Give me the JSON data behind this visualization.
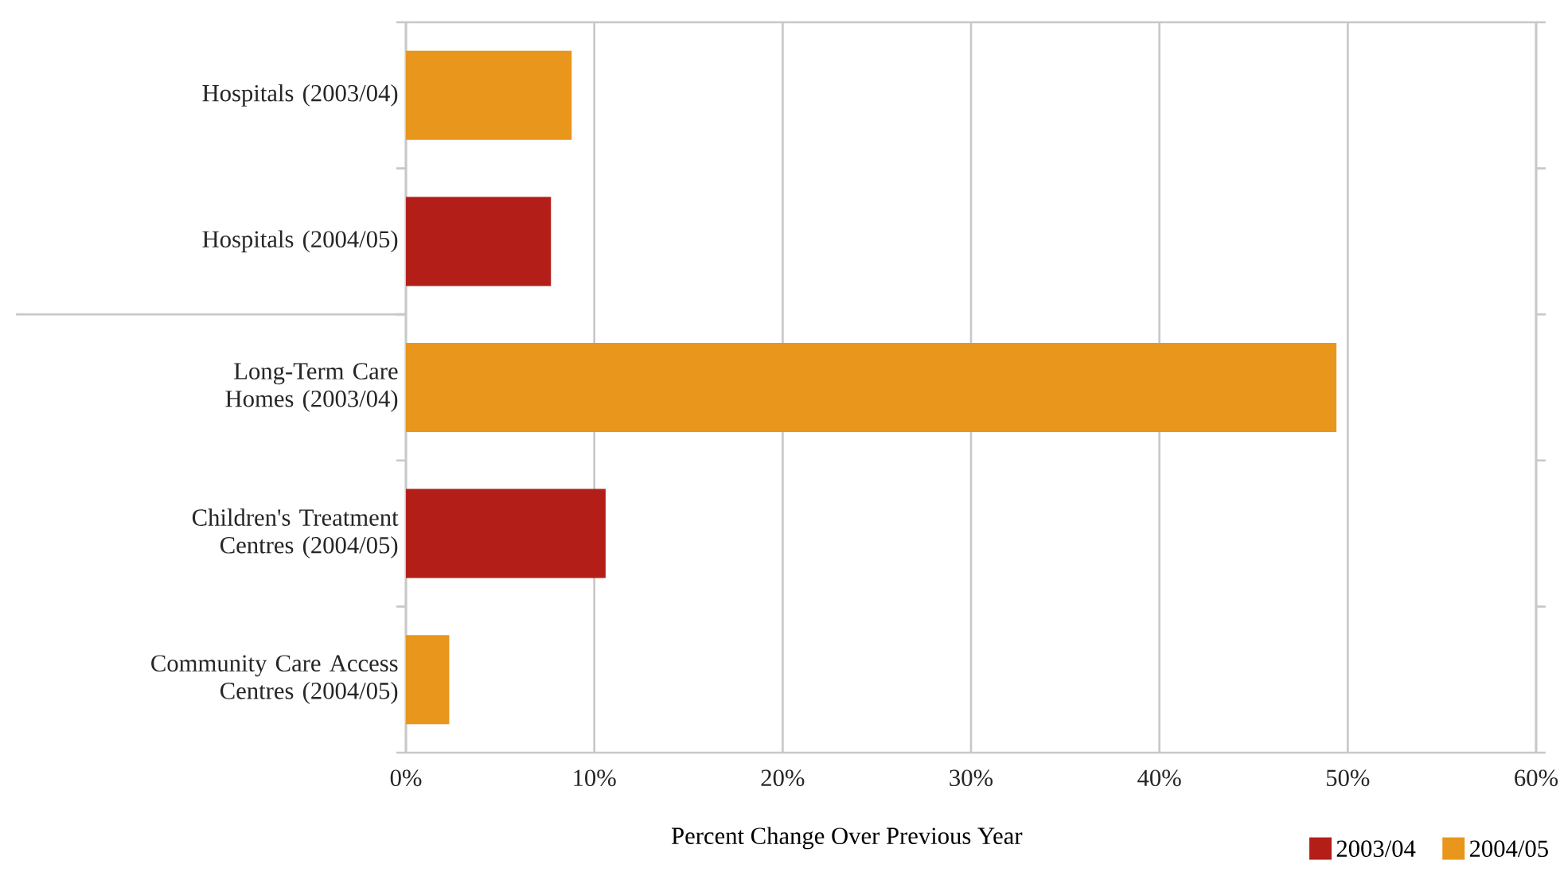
{
  "chart_data": {
    "type": "bar",
    "orientation": "horizontal",
    "xlabel": "Percent Change Over Previous Year",
    "categories": [
      "Hospitals (2003/04)",
      "Hospitals (2004/05)",
      "Long-Term Care Homes (2003/04)",
      "Children's Treatment Centres (2004/05)",
      "Community Care Access Centres (2004/05)"
    ],
    "series": [
      {
        "name": "2003/04",
        "color": "#b31e18",
        "values": [
          null,
          7.7,
          null,
          10.6,
          null
        ]
      },
      {
        "name": "2004/05",
        "color": "#e8961c",
        "values": [
          8.8,
          null,
          49.4,
          null,
          2.3
        ]
      }
    ],
    "xlim": [
      0,
      60
    ],
    "xticks": [
      {
        "value": 0,
        "label": "0%"
      },
      {
        "value": 10,
        "label": "10%"
      },
      {
        "value": 20,
        "label": "20%"
      },
      {
        "value": 30,
        "label": "30%"
      },
      {
        "value": 40,
        "label": "40%"
      },
      {
        "value": 50,
        "label": "50%"
      },
      {
        "value": 60,
        "label": "60%"
      }
    ],
    "grid": "x",
    "legend": "bottom right"
  }
}
